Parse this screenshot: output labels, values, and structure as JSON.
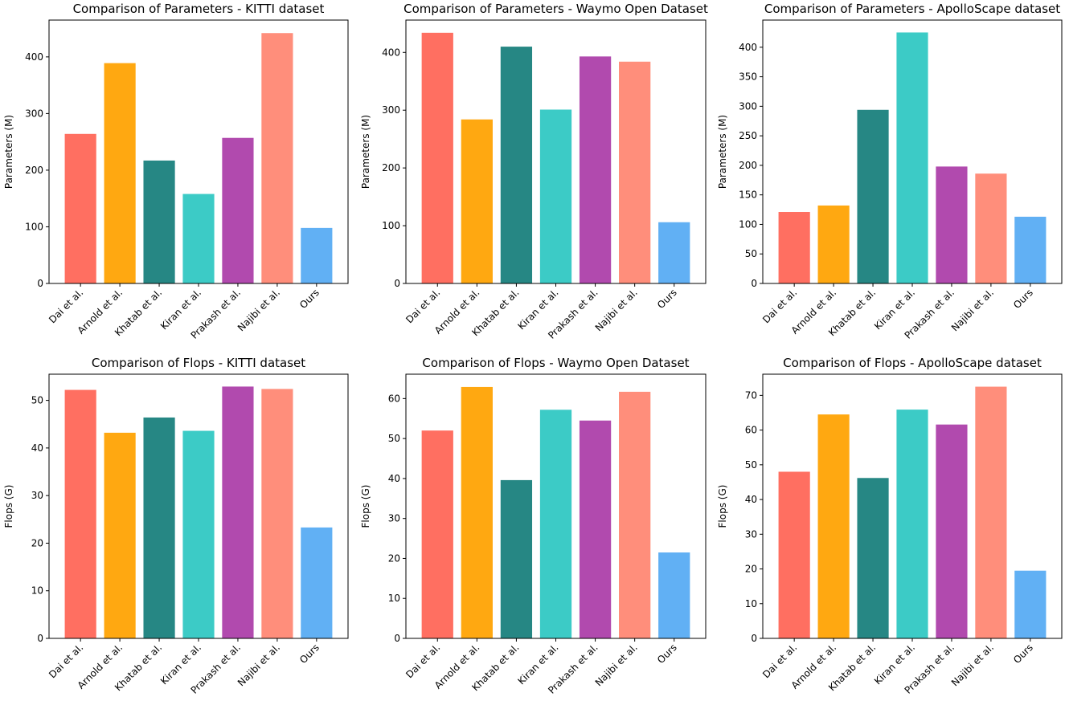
{
  "colors": {
    "Dai et al.": "#ff6f61",
    "Arnold et al.": "#ffa811",
    "Khatab et al.": "#268784",
    "Kiran et al.": "#3ccbc6",
    "Prakash et al.": "#b14aae",
    "Najibi et al.": "#ff8e7b",
    "Ours": "#61b0f4"
  },
  "chart_data": [
    {
      "type": "bar",
      "title": "Comparison of Parameters - KITTI dataset",
      "ylabel": "Parameters (M)",
      "xlabel": "",
      "categories": [
        "Dai et al.",
        "Arnold et al.",
        "Khatab et al.",
        "Kiran et al.",
        "Prakash et al.",
        "Najibi et al.",
        "Ours"
      ],
      "values": [
        264,
        389,
        217,
        158,
        257,
        442,
        98
      ],
      "ylim": [
        0,
        465
      ],
      "yticks": [
        0,
        100,
        200,
        300,
        400
      ]
    },
    {
      "type": "bar",
      "title": "Comparison of Parameters - Waymo Open Dataset",
      "ylabel": "Parameters (M)",
      "xlabel": "",
      "categories": [
        "Dai et al.",
        "Arnold et al.",
        "Khatab et al.",
        "Kiran et al.",
        "Prakash et al.",
        "Najibi et al.",
        "Ours"
      ],
      "values": [
        434,
        284,
        410,
        301,
        393,
        384,
        106
      ],
      "ylim": [
        0,
        456
      ],
      "yticks": [
        0,
        100,
        200,
        300,
        400
      ]
    },
    {
      "type": "bar",
      "title": "Comparison of Parameters - ApolloScape dataset",
      "ylabel": "Parameters (M)",
      "xlabel": "",
      "categories": [
        "Dai et al.",
        "Arnold et al.",
        "Khatab et al.",
        "Kiran et al.",
        "Prakash et al.",
        "Najibi et al.",
        "Ours"
      ],
      "values": [
        121,
        132,
        294,
        425,
        198,
        186,
        113
      ],
      "ylim": [
        0,
        446
      ],
      "yticks": [
        0,
        50,
        100,
        150,
        200,
        250,
        300,
        350,
        400
      ]
    },
    {
      "type": "bar",
      "title": "Comparison of Flops - KITTI dataset",
      "ylabel": "Flops (G)",
      "xlabel": "",
      "categories": [
        "Dai et al.",
        "Arnold et al.",
        "Khatab et al.",
        "Kiran et al.",
        "Prakash et al.",
        "Najibi et al.",
        "Ours"
      ],
      "values": [
        52.2,
        43.2,
        46.4,
        43.6,
        52.9,
        52.4,
        23.3
      ],
      "ylim": [
        0,
        55.5
      ],
      "yticks": [
        0,
        10,
        20,
        30,
        40,
        50
      ]
    },
    {
      "type": "bar",
      "title": "Comparison of Flops - Waymo Open Dataset",
      "ylabel": "Flops (G)",
      "xlabel": "",
      "categories": [
        "Dai et al.",
        "Arnold et al.",
        "Khatab et al.",
        "Kiran et al.",
        "Prakash et al.",
        "Najibi et al.",
        "Ours"
      ],
      "values": [
        52.0,
        62.9,
        39.6,
        57.2,
        54.5,
        61.7,
        21.5
      ],
      "ylim": [
        0,
        66.1
      ],
      "yticks": [
        0,
        10,
        20,
        30,
        40,
        50,
        60
      ]
    },
    {
      "type": "bar",
      "title": "Comparison of Flops - ApolloScape dataset",
      "ylabel": "Flops (G)",
      "xlabel": "",
      "categories": [
        "Dai et al.",
        "Arnold et al.",
        "Khatab et al.",
        "Kiran et al.",
        "Prakash et al.",
        "Najibi et al.",
        "Ours"
      ],
      "values": [
        48.0,
        64.5,
        46.2,
        65.9,
        61.6,
        72.5,
        19.5
      ],
      "ylim": [
        0,
        76.1
      ],
      "yticks": [
        0,
        10,
        20,
        30,
        40,
        50,
        60,
        70
      ]
    }
  ]
}
